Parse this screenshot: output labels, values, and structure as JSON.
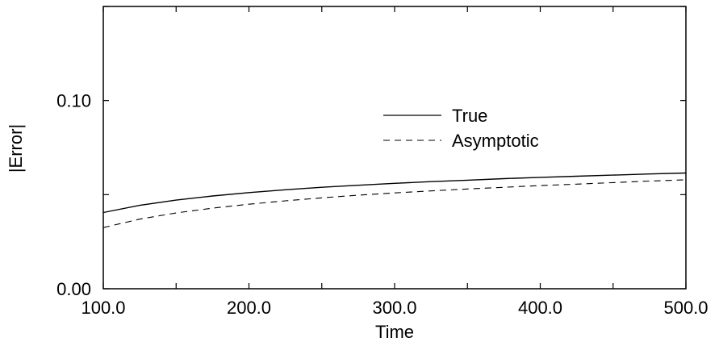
{
  "chart_data": {
    "type": "line",
    "title": "",
    "xlabel": "Time",
    "ylabel": "|Error|",
    "xlim": [
      100,
      500
    ],
    "ylim": [
      0,
      0.15
    ],
    "xticks": [
      100,
      150,
      200,
      250,
      300,
      350,
      400,
      450,
      500
    ],
    "xtick_labels": [
      "100.0",
      "200.0",
      "300.0",
      "400.0",
      "500.0"
    ],
    "yticks": [
      0.0,
      0.05,
      0.1,
      0.15
    ],
    "ytick_labels": [
      "0.00",
      "0.10"
    ],
    "legend_position": "upper-right",
    "grid": false,
    "series": [
      {
        "name": "True",
        "style": "solid",
        "color": "#000000",
        "x": [
          100,
          125,
          150,
          175,
          200,
          225,
          250,
          275,
          300,
          325,
          350,
          375,
          400,
          425,
          450,
          475,
          500
        ],
        "y": [
          0.0405,
          0.0443,
          0.0471,
          0.0493,
          0.0511,
          0.0526,
          0.0539,
          0.055,
          0.056,
          0.0569,
          0.0577,
          0.0585,
          0.0592,
          0.0598,
          0.0604,
          0.061,
          0.0615
        ]
      },
      {
        "name": "Asymptotic",
        "style": "dashed",
        "color": "#000000",
        "x": [
          100,
          125,
          150,
          175,
          200,
          225,
          250,
          275,
          300,
          325,
          350,
          375,
          400,
          425,
          450,
          475,
          500
        ],
        "y": [
          0.0325,
          0.037,
          0.0403,
          0.0428,
          0.0449,
          0.0467,
          0.0483,
          0.0497,
          0.0509,
          0.052,
          0.053,
          0.0539,
          0.0548,
          0.0556,
          0.0564,
          0.0572,
          0.0579
        ]
      }
    ]
  }
}
